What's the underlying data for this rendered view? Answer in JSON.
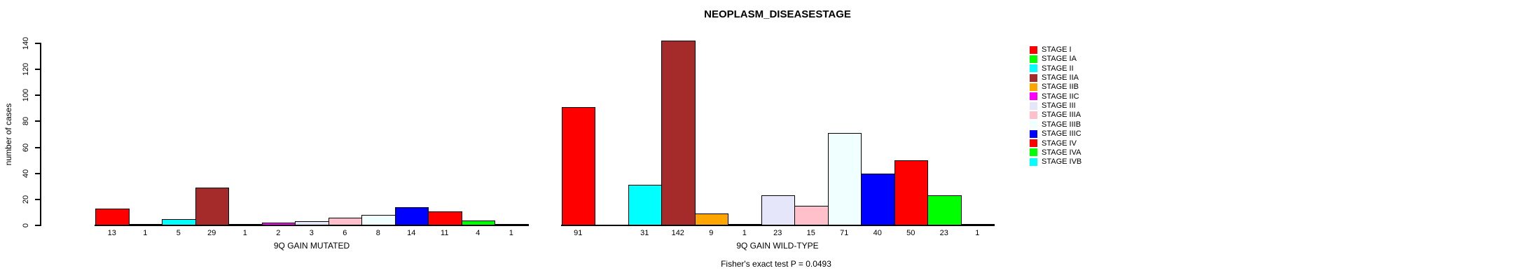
{
  "chart_data": {
    "type": "bar",
    "title": "NEOPLASM_DISEASESTAGE",
    "ylabel": "number of cases",
    "ylim": [
      0,
      140
    ],
    "yticks": [
      0,
      20,
      40,
      60,
      80,
      100,
      120,
      140
    ],
    "grid": false,
    "legend_position": "right",
    "categories": [
      "STAGE I",
      "STAGE IA",
      "STAGE II",
      "STAGE IIA",
      "STAGE IIB",
      "STAGE IIC",
      "STAGE III",
      "STAGE IIIA",
      "STAGE IIIB",
      "STAGE IIIC",
      "STAGE IV",
      "STAGE IVA",
      "STAGE IVB"
    ],
    "colors": [
      "#FF0000",
      "#00FF00",
      "#00FFFF",
      "#A52A2A",
      "#FFA500",
      "#FF00FF",
      "#E6E6FA",
      "#FFC0CB",
      "#F0FFFF",
      "#0000FF",
      "#FF0000",
      "#00FF00",
      "#00FFFF"
    ],
    "panels": [
      {
        "xlabel": "9Q GAIN MUTATED",
        "values": [
          13,
          1,
          5,
          29,
          1,
          2,
          3,
          6,
          8,
          14,
          11,
          4,
          1
        ],
        "bar_labels": [
          "13",
          "1",
          "5",
          "29",
          "1",
          "2",
          "3",
          "6",
          "8",
          "14",
          "11",
          "4",
          "1"
        ]
      },
      {
        "xlabel": "9Q GAIN WILD-TYPE",
        "values": [
          91,
          0,
          31,
          142,
          9,
          1,
          23,
          15,
          71,
          40,
          50,
          23,
          1
        ],
        "bar_labels": [
          "91",
          "",
          "31",
          "142",
          "9",
          "1",
          "23",
          "15",
          "71",
          "40",
          "50",
          "23",
          "1"
        ]
      }
    ],
    "annotation": "Fisher's exact test P = 0.0493"
  }
}
